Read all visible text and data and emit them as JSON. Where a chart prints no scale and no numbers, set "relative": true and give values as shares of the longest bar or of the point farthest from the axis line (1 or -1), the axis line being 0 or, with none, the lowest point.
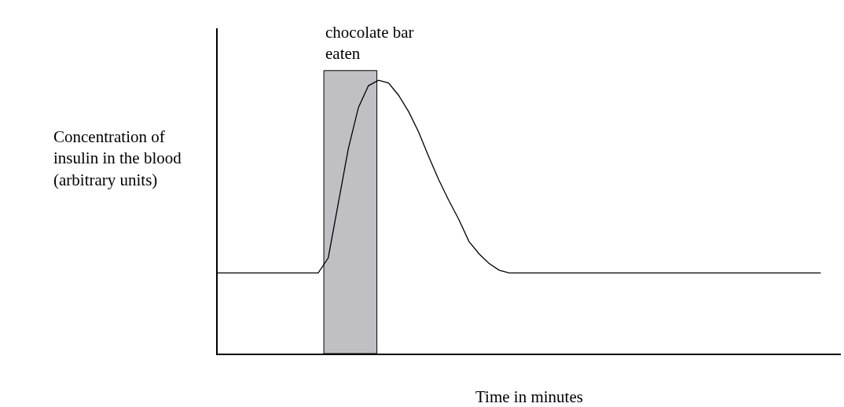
{
  "chart_data": {
    "type": "line",
    "relative": true,
    "xlabel": "Time in minutes",
    "ylabel": "Concentration of insulin in the blood (arbitrary units)",
    "categories": [
      null,
      null,
      null,
      null,
      null,
      null,
      null,
      null,
      null,
      null,
      null,
      null,
      null,
      null,
      null,
      null,
      null,
      null,
      null,
      null,
      null,
      null,
      null,
      null,
      null,
      null,
      null,
      null,
      null,
      null,
      null,
      null,
      null,
      null,
      null,
      null,
      null,
      null,
      null,
      null,
      null,
      null,
      null,
      null,
      null,
      null,
      null,
      null,
      null,
      null,
      null,
      null,
      null,
      null,
      null,
      null,
      null,
      null,
      null,
      null,
      null
    ],
    "series": [
      {
        "color": "#000000",
        "values": [
          0.295,
          0.295,
          0.295,
          0.295,
          0.295,
          0.295,
          0.295,
          0.295,
          0.295,
          0.295,
          0.295,
          0.35,
          0.55,
          0.75,
          0.9,
          0.98,
          1.0,
          0.99,
          0.945,
          0.885,
          0.81,
          0.72,
          0.635,
          0.56,
          0.49,
          0.41,
          0.365,
          0.33,
          0.305,
          0.295,
          0.295,
          0.295,
          0.295,
          0.295,
          0.295,
          0.295,
          0.295,
          0.295,
          0.295,
          0.295,
          0.295,
          0.295,
          0.295,
          0.295,
          0.295,
          0.295,
          0.295,
          0.295,
          0.295,
          0.295,
          0.295,
          0.295,
          0.295,
          0.295,
          0.295,
          0.295,
          0.295,
          0.295,
          0.295,
          0.295,
          0.295
        ]
      }
    ],
    "annotations": [
      "chocolate bar eaten"
    ],
    "grid": false,
    "marker": "none",
    "line_style": "solid"
  }
}
